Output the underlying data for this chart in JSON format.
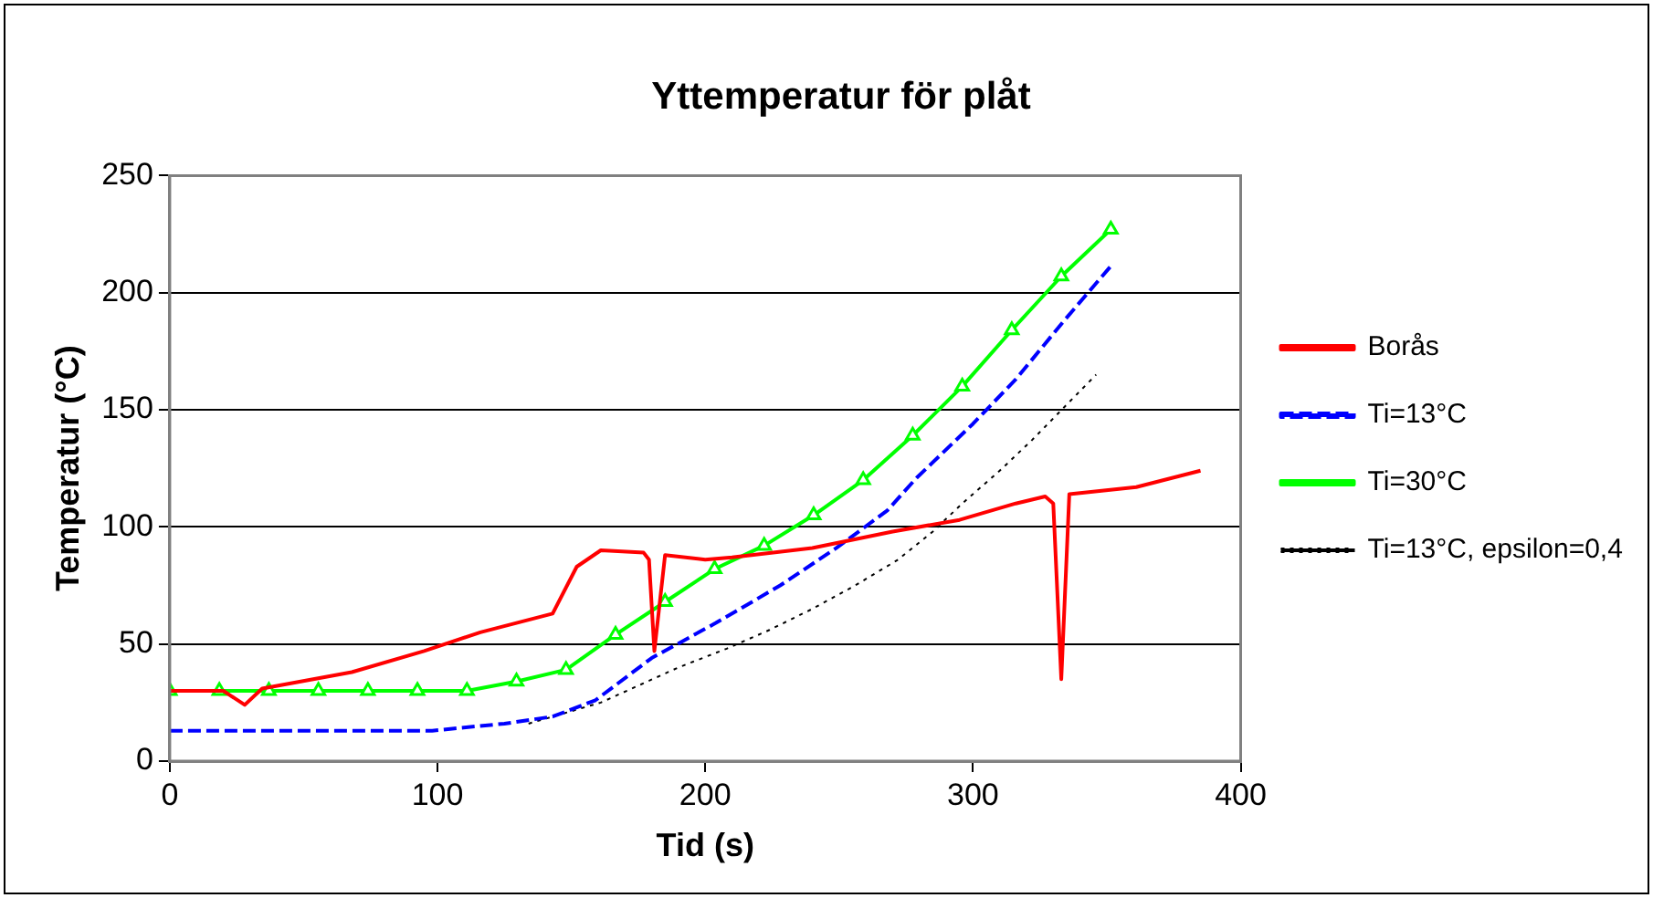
{
  "chart_data": {
    "type": "line",
    "title": "Yttemperatur för plåt",
    "xlabel": "Tid (s)",
    "ylabel": "Temperatur (°C)",
    "xlim": [
      0,
      400
    ],
    "xticks": [
      0,
      100,
      200,
      300,
      400
    ],
    "ylim": [
      0,
      250
    ],
    "yticks": [
      0,
      50,
      100,
      150,
      200,
      250
    ],
    "grid": "y",
    "legend": "right",
    "series": [
      {
        "name": "Borås",
        "color": "#ff0000",
        "marker": "none",
        "line_style": "solid",
        "x": [
          0,
          20,
          28,
          34.5,
          68,
          95,
          116,
          143,
          152,
          161,
          177,
          179,
          181,
          185,
          200,
          210,
          240,
          270,
          295,
          316,
          327,
          330,
          333,
          336,
          361,
          385
        ],
        "values": [
          30,
          30,
          24,
          31,
          38,
          47,
          55,
          63,
          83,
          90,
          89,
          86,
          47,
          88,
          86,
          87,
          91,
          98,
          103,
          110,
          113,
          110,
          35,
          114,
          117,
          124
        ]
      },
      {
        "name": "Ti=13°C",
        "color": "#0000ff",
        "marker": "none",
        "line_style": "dashed",
        "x": [
          0,
          98,
          125,
          143,
          159,
          180,
          204,
          228,
          249,
          268,
          279,
          300,
          316,
          334,
          352
        ],
        "values": [
          13,
          13,
          16,
          19,
          26,
          44,
          59,
          75,
          91,
          107,
          121,
          144,
          163,
          188,
          212
        ]
      },
      {
        "name": "Ti=30°C",
        "color": "#00ff00",
        "marker": "triangle",
        "line_style": "solid",
        "x": [
          0,
          18.5,
          37,
          55.5,
          74,
          92.5,
          111,
          129.5,
          148,
          166.5,
          185,
          203.5,
          222,
          240.5,
          259,
          277.5,
          296,
          314.5,
          333,
          351.5
        ],
        "values": [
          30,
          30,
          30,
          30,
          30,
          30,
          30,
          34,
          39,
          54,
          68,
          82,
          92,
          105,
          120,
          139,
          160,
          184,
          207,
          227
        ]
      },
      {
        "name": "Ti=13°C, epsilon=0,4",
        "color": "#000000",
        "marker": "none",
        "line_style": "dotted",
        "x": [
          134,
          161,
          190,
          208,
          224,
          240,
          256,
          272,
          285,
          296,
          310,
          322,
          334,
          346
        ],
        "values": [
          16,
          25,
          40,
          48,
          56,
          65,
          75,
          86,
          98,
          110,
          124,
          137,
          151,
          165
        ]
      }
    ]
  }
}
